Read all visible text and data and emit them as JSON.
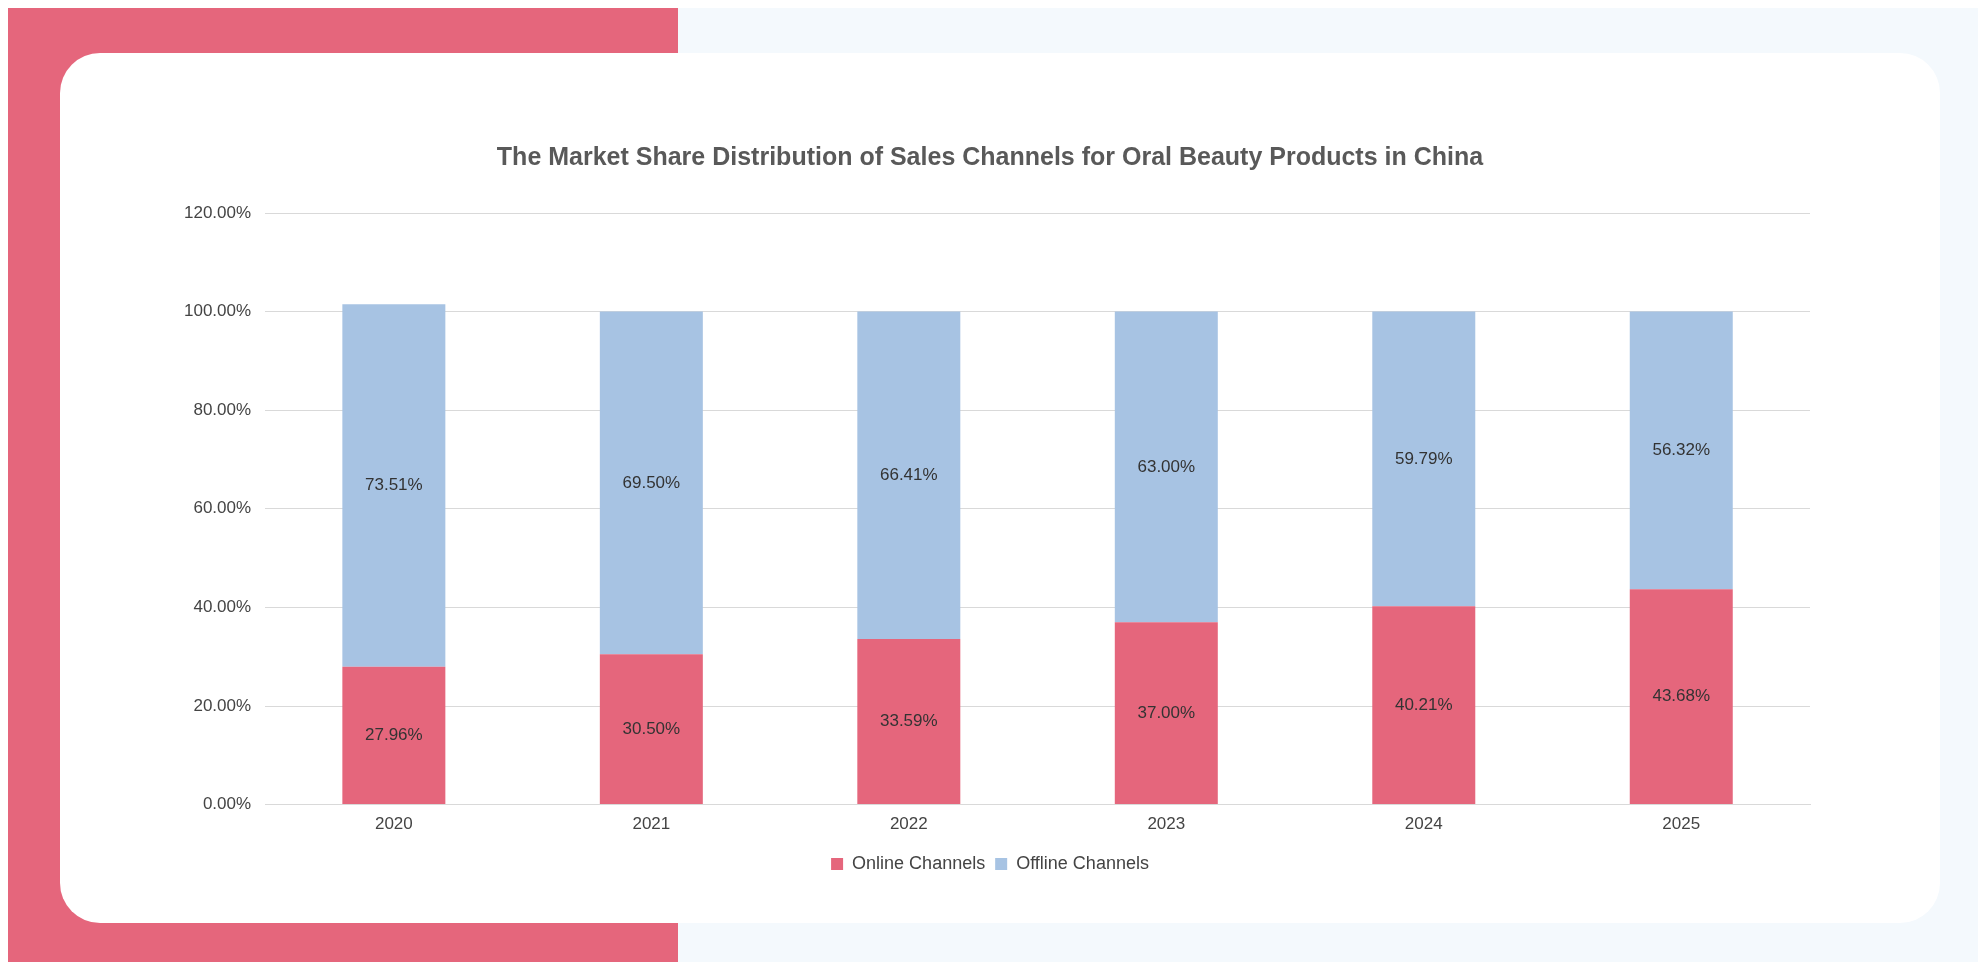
{
  "chart_data": {
    "type": "bar",
    "title": "The Market Share Distribution of Sales Channels for Oral Beauty Products in China",
    "categories": [
      "2020",
      "2021",
      "2022",
      "2023",
      "2024",
      "2025"
    ],
    "stacked": true,
    "series": [
      {
        "name": "Online Channels",
        "color": "#e5667c",
        "values": [
          27.96,
          30.5,
          33.59,
          37.0,
          40.21,
          43.68
        ],
        "value_labels": [
          "27.96%",
          "30.50%",
          "33.59%",
          "37.00%",
          "40.21%",
          "43.68%"
        ]
      },
      {
        "name": "Offline Channels",
        "color": "#a7c3e3",
        "values": [
          73.51,
          69.5,
          66.41,
          63.0,
          59.79,
          56.32
        ],
        "value_labels": [
          "73.51%",
          "69.50%",
          "66.41%",
          "63.00%",
          "59.79%",
          "56.32%"
        ]
      }
    ],
    "ylim": [
      0,
      120
    ],
    "yticks": [
      {
        "value": 0,
        "label": "0.00%"
      },
      {
        "value": 20,
        "label": "20.00%"
      },
      {
        "value": 40,
        "label": "40.00%"
      },
      {
        "value": 60,
        "label": "60.00%"
      },
      {
        "value": 80,
        "label": "80.00%"
      },
      {
        "value": 100,
        "label": "100.00%"
      },
      {
        "value": 120,
        "label": "120.00%"
      }
    ],
    "grid": "y",
    "legend": "bottom"
  }
}
